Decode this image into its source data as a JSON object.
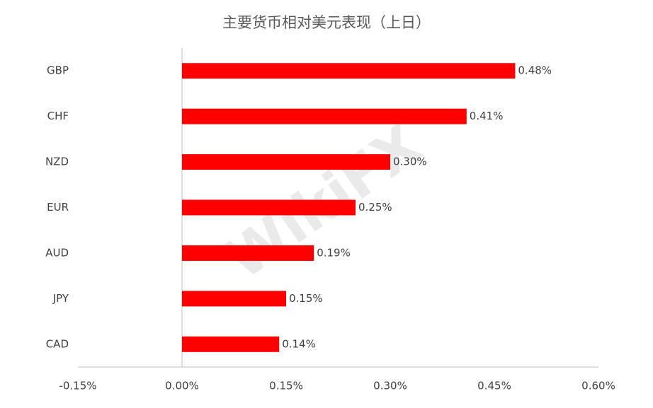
{
  "chart_data": {
    "type": "hbar",
    "title": "主要货币相对美元表现（上日）",
    "categories": [
      "GBP",
      "CHF",
      "NZD",
      "EUR",
      "AUD",
      "JPY",
      "CAD"
    ],
    "values": [
      0.48,
      0.41,
      0.3,
      0.25,
      0.19,
      0.15,
      0.14
    ],
    "value_labels": [
      "0.48%",
      "0.41%",
      "0.30%",
      "0.25%",
      "0.19%",
      "0.15%",
      "0.14%"
    ],
    "color": "#ff0000",
    "xlim": [
      -0.15,
      0.6
    ],
    "xticks": [
      {
        "value": -0.15,
        "label": "-0.15%"
      },
      {
        "value": 0,
        "label": "0.00%"
      },
      {
        "value": 0.15,
        "label": "0.15%"
      },
      {
        "value": 0.3,
        "label": "0.30%"
      },
      {
        "value": 0.45,
        "label": "0.45%"
      },
      {
        "value": 0.6,
        "label": "0.60%"
      }
    ],
    "watermark": "WikiFX"
  }
}
